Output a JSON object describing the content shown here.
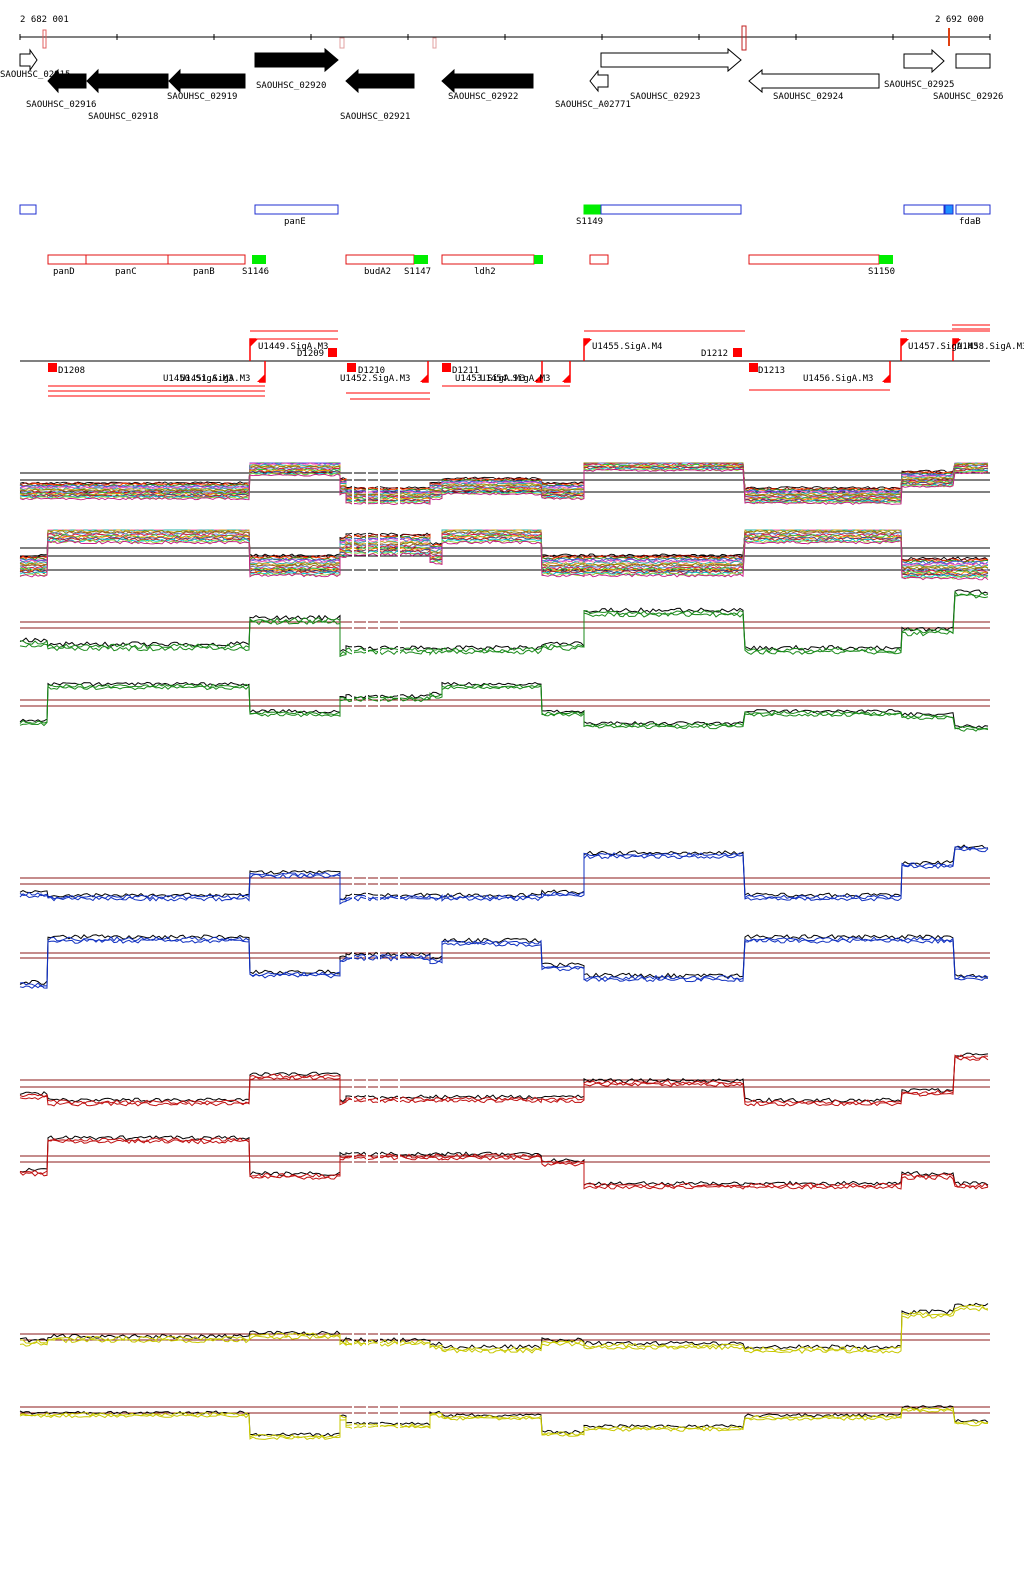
{
  "ruler": {
    "start_label": "2 682 001",
    "end_label": "2 692 000"
  },
  "genes": [
    {
      "label": "SAOUHSC_02915",
      "fill": "white",
      "dir": "right"
    },
    {
      "label": "SAOUHSC_02916",
      "fill": "black",
      "dir": "left"
    },
    {
      "label": "SAOUHSC_02918",
      "fill": "black",
      "dir": "left"
    },
    {
      "label": "SAOUHSC_02919",
      "fill": "black",
      "dir": "left"
    },
    {
      "label": "SAOUHSC_02920",
      "fill": "black",
      "dir": "right"
    },
    {
      "label": "SAOUHSC_02921",
      "fill": "black",
      "dir": "left"
    },
    {
      "label": "SAOUHSC_02922",
      "fill": "black",
      "dir": "left"
    },
    {
      "label": "SAOUHSC_A02771",
      "fill": "white",
      "dir": "left"
    },
    {
      "label": "SAOUHSC_02923",
      "fill": "white",
      "dir": "right"
    },
    {
      "label": "SAOUHSC_02924",
      "fill": "white",
      "dir": "left"
    },
    {
      "label": "SAOUHSC_02925",
      "fill": "white",
      "dir": "right"
    },
    {
      "label": "SAOUHSC_02926",
      "fill": "white",
      "dir": "none"
    }
  ],
  "blue_features": [
    {
      "label": "panE"
    },
    {
      "label": "S1149"
    },
    {
      "label": "fdaB"
    }
  ],
  "red_features": [
    {
      "label": "panD"
    },
    {
      "label": "panC"
    },
    {
      "label": "panB"
    },
    {
      "label": "S1146"
    },
    {
      "label": "budA2"
    },
    {
      "label": "S1147"
    },
    {
      "label": "ldh2"
    },
    {
      "label": "S1150"
    }
  ],
  "tu_upper": [
    {
      "label": "U1449.SigA.M3"
    },
    {
      "label": "D1209"
    },
    {
      "label": "U1455.SigA.M4"
    },
    {
      "label": "D1212"
    },
    {
      "label": "U1457.SigA.M3"
    },
    {
      "label": "U1458.SigA.M3"
    }
  ],
  "tu_lower": [
    {
      "label": "D1208"
    },
    {
      "label": "U1450.SigA.M3"
    },
    {
      "label": "U1451.SigA.M3"
    },
    {
      "label": "D1210"
    },
    {
      "label": "U1452.SigA.M3"
    },
    {
      "label": "D1211"
    },
    {
      "label": "U1453.SigA.M3"
    },
    {
      "label": "U1454.SigA.M3"
    },
    {
      "label": "D1213"
    },
    {
      "label": "U1456.SigA.M3"
    }
  ],
  "colors": {
    "black": "#000000",
    "blue_feature": "#1f2fd0",
    "red_feature": "#e01010",
    "green_box": "#00ee00",
    "tu_red": "#ff0000",
    "guide_brown": "#8b1a1a",
    "track_green": "#1a8a1a",
    "track_blue": "#1030c0",
    "track_red": "#c01010",
    "track_yellow": "#c8c800"
  }
}
